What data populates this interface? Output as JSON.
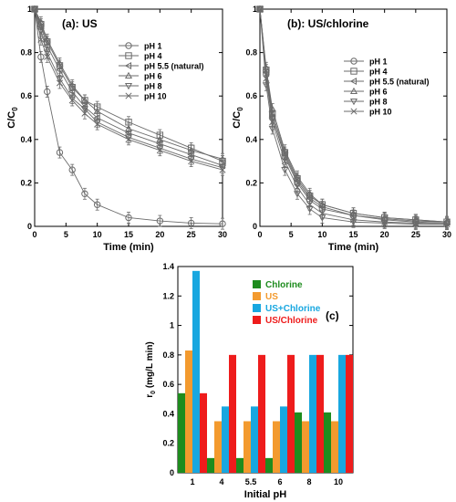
{
  "chart_data": [
    {
      "type": "line",
      "panel_label": "(a): US",
      "xlabel": "Time (min)",
      "ylabel": "C/C",
      "ylabel_sub": "0",
      "xlim": [
        0,
        30
      ],
      "ylim": [
        0,
        1
      ],
      "xticks": [
        "0",
        "5",
        "10",
        "15",
        "20",
        "25",
        "30"
      ],
      "yticks": [
        "0",
        "0.2",
        "0.4",
        "0.6",
        "0.8",
        "1"
      ],
      "x": [
        0,
        1,
        2,
        4,
        6,
        8,
        10,
        15,
        20,
        25,
        30
      ],
      "legend_position": "top-right",
      "series": [
        {
          "name": "pH 1",
          "marker": "circle",
          "values": [
            1.0,
            0.78,
            0.62,
            0.34,
            0.26,
            0.15,
            0.1,
            0.04,
            0.025,
            0.015,
            0.012
          ]
        },
        {
          "name": "pH 4",
          "marker": "square",
          "values": [
            1.0,
            0.93,
            0.85,
            0.74,
            0.64,
            0.58,
            0.55,
            0.48,
            0.42,
            0.36,
            0.3
          ]
        },
        {
          "name": "pH 5.5 (natural)",
          "marker": "triangle-left",
          "values": [
            1.0,
            0.92,
            0.83,
            0.72,
            0.62,
            0.55,
            0.5,
            0.43,
            0.38,
            0.33,
            0.28
          ]
        },
        {
          "name": "pH 6",
          "marker": "triangle-up",
          "values": [
            1.0,
            0.94,
            0.86,
            0.75,
            0.65,
            0.58,
            0.53,
            0.45,
            0.4,
            0.35,
            0.31
          ]
        },
        {
          "name": "pH 8",
          "marker": "triangle-down",
          "values": [
            1.0,
            0.9,
            0.8,
            0.68,
            0.59,
            0.54,
            0.48,
            0.41,
            0.36,
            0.31,
            0.27
          ]
        },
        {
          "name": "pH 10",
          "marker": "x",
          "values": [
            1.0,
            0.86,
            0.78,
            0.66,
            0.58,
            0.52,
            0.47,
            0.4,
            0.35,
            0.3,
            0.26
          ]
        }
      ]
    },
    {
      "type": "line",
      "panel_label": "(b): US/chlorine",
      "xlabel": "Time (min)",
      "ylabel": "C/C",
      "ylabel_sub": "0",
      "xlim": [
        0,
        30
      ],
      "ylim": [
        0,
        1
      ],
      "xticks": [
        "0",
        "5",
        "10",
        "15",
        "20",
        "25",
        "30"
      ],
      "yticks": [
        "0",
        "0.2",
        "0.4",
        "0.6",
        "0.8",
        "1"
      ],
      "x": [
        0,
        1,
        2,
        4,
        6,
        8,
        10,
        15,
        20,
        25,
        30
      ],
      "legend_position": "top-right",
      "series": [
        {
          "name": "pH 1",
          "marker": "circle",
          "values": [
            1.0,
            0.7,
            0.5,
            0.32,
            0.2,
            0.12,
            0.08,
            0.05,
            0.03,
            0.02,
            0.015
          ]
        },
        {
          "name": "pH 4",
          "marker": "square",
          "values": [
            1.0,
            0.72,
            0.52,
            0.34,
            0.22,
            0.14,
            0.1,
            0.06,
            0.04,
            0.03,
            0.02
          ]
        },
        {
          "name": "pH 5.5 (natural)",
          "marker": "triangle-left",
          "values": [
            1.0,
            0.71,
            0.5,
            0.33,
            0.21,
            0.13,
            0.09,
            0.05,
            0.035,
            0.025,
            0.02
          ]
        },
        {
          "name": "pH 6",
          "marker": "triangle-up",
          "values": [
            1.0,
            0.73,
            0.54,
            0.35,
            0.23,
            0.15,
            0.1,
            0.06,
            0.04,
            0.03,
            0.02
          ]
        },
        {
          "name": "pH 8",
          "marker": "triangle-down",
          "values": [
            1.0,
            0.65,
            0.45,
            0.26,
            0.15,
            0.08,
            0.04,
            0.02,
            0.015,
            0.01,
            0.01
          ]
        },
        {
          "name": "pH 10",
          "marker": "x",
          "values": [
            1.0,
            0.68,
            0.48,
            0.3,
            0.18,
            0.1,
            0.06,
            0.03,
            0.02,
            0.015,
            0.01
          ]
        }
      ]
    },
    {
      "type": "bar",
      "panel_label": "(c)",
      "xlabel": "Initial pH",
      "ylabel": "r",
      "ylabel_sub": "0",
      "ylabel_units": " (mg/L min)",
      "ylim": [
        0,
        1.4
      ],
      "yticks": [
        "0",
        "0.2",
        "0.4",
        "0.6",
        "0.8",
        "1",
        "1.2",
        "1.4"
      ],
      "categories": [
        "1",
        "4",
        "5.5",
        "6",
        "8",
        "10"
      ],
      "legend_position": "top-right",
      "series": [
        {
          "name": "Chlorine",
          "color": "#1e8c1e",
          "values": [
            0.54,
            0.1,
            0.1,
            0.1,
            0.41,
            0.41
          ]
        },
        {
          "name": "US",
          "color": "#f39a2e",
          "values": [
            0.83,
            0.35,
            0.35,
            0.35,
            0.35,
            0.35
          ]
        },
        {
          "name": "US+Chlorine",
          "color": "#18a7e0",
          "values": [
            1.37,
            0.45,
            0.45,
            0.45,
            0.8,
            0.8
          ]
        },
        {
          "name": "US/Chlorine",
          "color": "#ee1c1c",
          "values": [
            0.54,
            0.8,
            0.8,
            0.8,
            0.8,
            0.8
          ]
        }
      ]
    }
  ]
}
